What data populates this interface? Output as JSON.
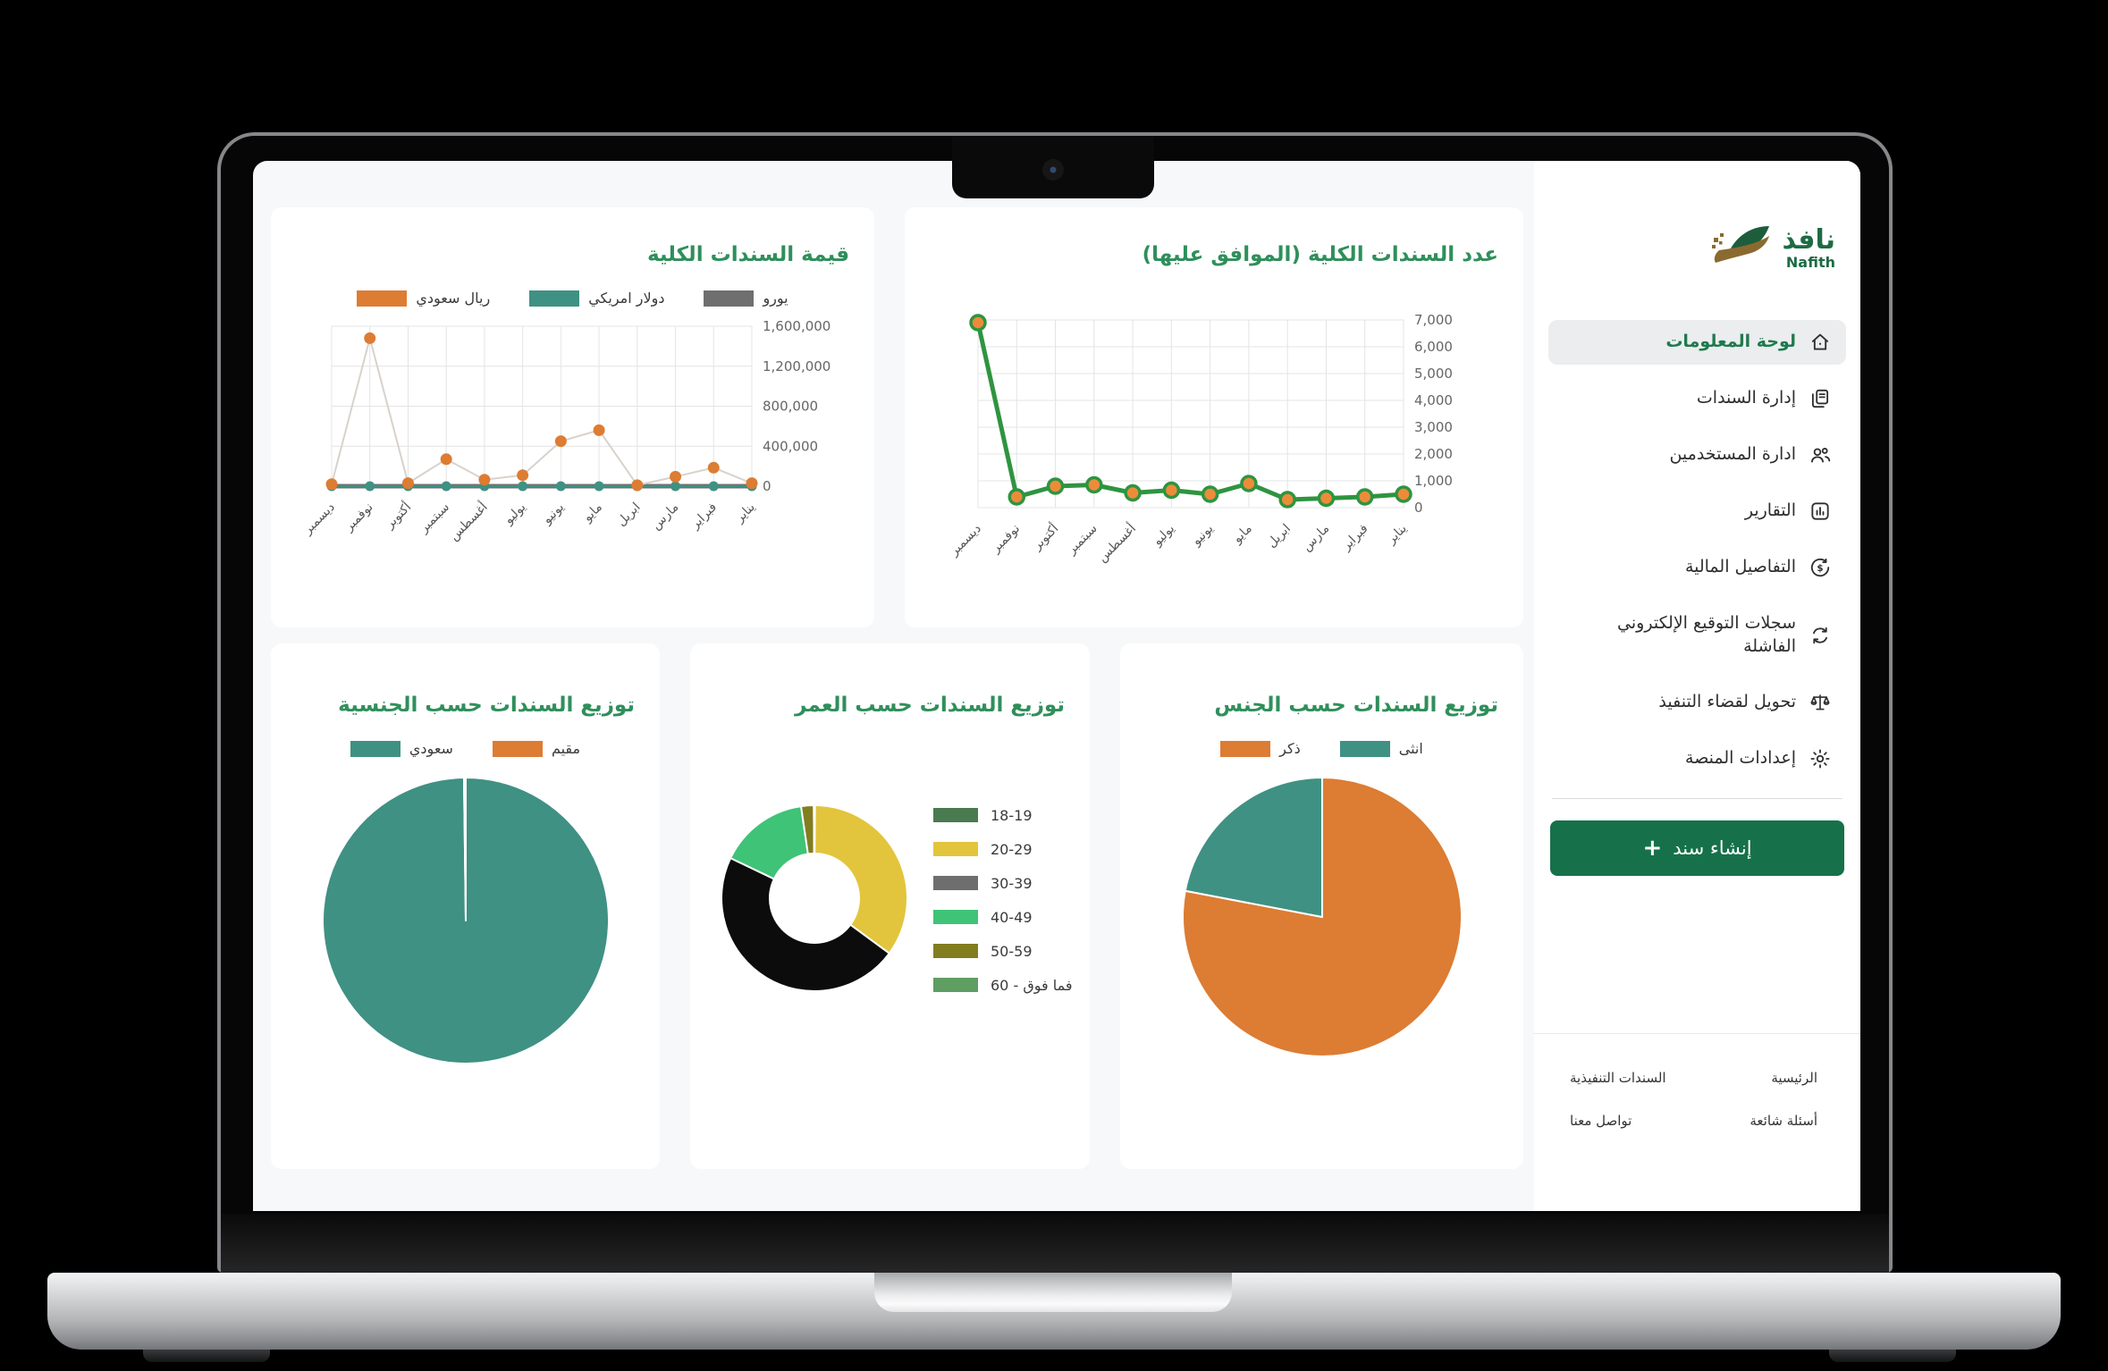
{
  "sidebar": {
    "logo": {
      "arabic": "نافذ",
      "latin": "Nafith"
    },
    "items": [
      {
        "label": "لوحة المعلومات",
        "icon": "home-icon",
        "active": true
      },
      {
        "label": "إدارة السندات",
        "icon": "documents-icon",
        "active": false
      },
      {
        "label": "ادارة المستخدمين",
        "icon": "users-icon",
        "active": false
      },
      {
        "label": "التقارير",
        "icon": "reports-icon",
        "active": false
      },
      {
        "label": "التفاصيل المالية",
        "icon": "financial-icon",
        "active": false
      },
      {
        "label": "سجلات التوقيع الإلكتروني الفاشلة",
        "icon": "sync-icon",
        "active": false
      },
      {
        "label": "تحويل لقضاء التنفيذ",
        "icon": "scales-icon",
        "active": false
      },
      {
        "label": "إعدادات المنصة",
        "icon": "gear-icon",
        "active": false
      }
    ],
    "create_button": "إنشاء سند",
    "footer_links": [
      "الرئيسية",
      "السندات التنفيذية",
      "أسئلة شائعة",
      "تواصل معنا"
    ]
  },
  "colors": {
    "title_green": "#2f8f5b",
    "button_green": "#16714a",
    "orange": "#dd7c33",
    "teal": "#3f9183",
    "gray": "#6f6f6f",
    "line_green": "#2e9440"
  },
  "chart_data": [
    {
      "id": "value",
      "type": "line",
      "title": "قيمة السندات الكلية",
      "categories": [
        "ديسمبر",
        "نوفمبر",
        "أكتوبر",
        "سبتمبر",
        "أغسطس",
        "يوليو",
        "يونيو",
        "مايو",
        "ابريل",
        "مارس",
        "فبراير",
        "يناير"
      ],
      "series": [
        {
          "name": "ريال سعودي",
          "color": "#dd7c33",
          "line_color": "#d8d2cb",
          "line_width": 2,
          "point_radius": 6.5,
          "values": [
            20000,
            1480000,
            30000,
            270000,
            65000,
            110000,
            450000,
            560000,
            10000,
            95000,
            185000,
            30000
          ]
        },
        {
          "name": "دولار امريكي",
          "color": "#3f9183",
          "line_color": "#3f9183",
          "line_width": 2,
          "point_radius": 5.5,
          "values": [
            0,
            0,
            0,
            0,
            0,
            0,
            0,
            0,
            0,
            0,
            0,
            0
          ]
        },
        {
          "name": "يورو",
          "color": "#6f6f6f",
          "line_color": "#6f6f6f",
          "line_width": 5,
          "point_radius": 0,
          "values": [
            0,
            0,
            0,
            0,
            0,
            0,
            0,
            0,
            0,
            0,
            0,
            0
          ]
        }
      ],
      "ylim": [
        0,
        1600000
      ],
      "yticks": [
        0,
        400000,
        800000,
        1200000,
        1600000
      ],
      "ytick_labels": [
        "0",
        "400,000",
        "800,000",
        "1,200,000",
        "1,600,000"
      ],
      "legend_position": "top",
      "grid": true
    },
    {
      "id": "count",
      "type": "line",
      "title": "عدد السندات الكلية (الموافق عليها)",
      "categories": [
        "ديسمبر",
        "نوفمبر",
        "أكتوبر",
        "سبتمبر",
        "أغسطس",
        "يوليو",
        "يونيو",
        "مايو",
        "ابريل",
        "مارس",
        "فبراير",
        "يناير"
      ],
      "series": [
        {
          "name": "عدد السندات",
          "color": "#ec8c3a",
          "line_color": "#2e9440",
          "line_width": 5,
          "point_radius": 8,
          "point_stroke": "#2e9440",
          "point_stroke_width": 3.5,
          "values": [
            6900,
            400,
            800,
            850,
            550,
            650,
            500,
            900,
            300,
            350,
            400,
            500
          ]
        }
      ],
      "ylim": [
        0,
        7000
      ],
      "yticks": [
        0,
        1000,
        2000,
        3000,
        4000,
        5000,
        6000,
        7000
      ],
      "ytick_labels": [
        "0",
        "1,000",
        "2,000",
        "3,000",
        "4,000",
        "5,000",
        "6,000",
        "7,000"
      ],
      "legend_position": "none",
      "grid": true
    },
    {
      "id": "nationality",
      "type": "pie",
      "title": "توزيع السندات حسب الجنسية",
      "slices": [
        {
          "label": "سعودي",
          "color": "#3f9183",
          "value": 99.8
        },
        {
          "label": "مقيم",
          "color": "#dd7c33",
          "value": 0.2
        }
      ],
      "legend_position": "top"
    },
    {
      "id": "age",
      "type": "donut",
      "title": "توزيع السندات حسب العمر",
      "slices": [
        {
          "label": "18-19",
          "color": "#4a7a50",
          "value": 0.1
        },
        {
          "label": "20-29",
          "color": "#e2c53c",
          "value": 35
        },
        {
          "label": "30-39",
          "color": "#6e6e6e",
          "slice_color": "#0c0c0c",
          "value": 47
        },
        {
          "label": "40-49",
          "color": "#3fc377",
          "value": 15.6
        },
        {
          "label": "50-59",
          "color": "#827d1f",
          "value": 2.2
        },
        {
          "label": "60 - فما فوق",
          "color": "#5f9e63",
          "value": 0.1
        }
      ],
      "legend_position": "side"
    },
    {
      "id": "gender",
      "type": "pie",
      "title": "توزيع السندات حسب الجنس",
      "slices": [
        {
          "label": "ذكر",
          "color": "#dd7c33",
          "value": 78
        },
        {
          "label": "انثى",
          "color": "#3f9183",
          "value": 22
        }
      ],
      "legend_position": "top"
    }
  ]
}
